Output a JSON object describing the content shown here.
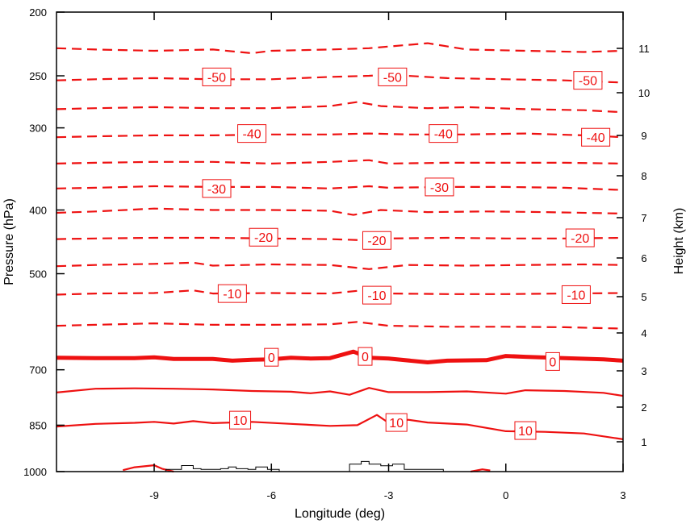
{
  "chart_data": {
    "type": "contour",
    "xlabel": "Longitude (deg)",
    "ylabel_left": "Pressure (hPa)",
    "ylabel_right": "Height (km)",
    "x_range": [
      -11.5,
      3.0
    ],
    "x_ticks": [
      {
        "value": -9,
        "label": "-9"
      },
      {
        "value": -6,
        "label": "-6"
      },
      {
        "value": -3,
        "label": "-3"
      },
      {
        "value": 0,
        "label": "0"
      },
      {
        "value": 3,
        "label": "3"
      }
    ],
    "pressure_range": [
      1000,
      200
    ],
    "pressure_scale": "log",
    "pressure_ticks": [
      {
        "value": 200,
        "label": "200"
      },
      {
        "value": 250,
        "label": "250"
      },
      {
        "value": 300,
        "label": "300"
      },
      {
        "value": 400,
        "label": "400"
      },
      {
        "value": 500,
        "label": "500"
      },
      {
        "value": 700,
        "label": "700"
      },
      {
        "value": 850,
        "label": "850"
      },
      {
        "value": 1000,
        "label": "1000"
      }
    ],
    "height_ticks": [
      {
        "value": 1,
        "label": "1"
      },
      {
        "value": 2,
        "label": "2"
      },
      {
        "value": 3,
        "label": "3"
      },
      {
        "value": 4,
        "label": "4"
      },
      {
        "value": 5,
        "label": "5"
      },
      {
        "value": 6,
        "label": "6"
      },
      {
        "value": 7,
        "label": "7"
      },
      {
        "value": 8,
        "label": "8"
      },
      {
        "value": 9,
        "label": "9"
      },
      {
        "value": 10,
        "label": "10"
      },
      {
        "value": 11,
        "label": "11"
      }
    ],
    "contour_color": "#ee1111",
    "terrain_color": "#000000",
    "contours": [
      {
        "value": -55,
        "style": "dashed",
        "labeled": false,
        "points": [
          [
            -11.5,
            227
          ],
          [
            -10.5,
            228
          ],
          [
            -9.0,
            229
          ],
          [
            -7.5,
            228
          ],
          [
            -6.5,
            231
          ],
          [
            -6.0,
            229
          ],
          [
            -4.5,
            228
          ],
          [
            -3.5,
            227
          ],
          [
            -2.0,
            223
          ],
          [
            -1.0,
            228
          ],
          [
            0.5,
            229
          ],
          [
            2.0,
            230
          ],
          [
            3.0,
            229
          ]
        ]
      },
      {
        "value": -50,
        "style": "dashed",
        "labeled": true,
        "label": "-50",
        "points": [
          [
            -11.5,
            254
          ],
          [
            -10.5,
            253
          ],
          [
            -9.0,
            252
          ],
          [
            -7.5,
            253
          ],
          [
            -6.0,
            253
          ],
          [
            -4.5,
            251
          ],
          [
            -3.5,
            250
          ],
          [
            -3.0,
            249
          ],
          [
            -1.5,
            252
          ],
          [
            0.0,
            253
          ],
          [
            1.5,
            254
          ],
          [
            3.0,
            256
          ]
        ],
        "label_positions": [
          [
            -7.4,
            251
          ],
          [
            -2.9,
            251
          ],
          [
            2.1,
            254
          ]
        ]
      },
      {
        "value": -45,
        "style": "dashed",
        "labeled": false,
        "points": [
          [
            -11.5,
            281
          ],
          [
            -10.5,
            280
          ],
          [
            -9.0,
            279
          ],
          [
            -7.5,
            280
          ],
          [
            -6.0,
            280
          ],
          [
            -4.5,
            278
          ],
          [
            -3.8,
            274
          ],
          [
            -3.2,
            278
          ],
          [
            -2.0,
            280
          ],
          [
            -1.0,
            279
          ],
          [
            0.5,
            281
          ],
          [
            2.0,
            282
          ],
          [
            3.0,
            284
          ]
        ]
      },
      {
        "value": -40,
        "style": "dashed",
        "labeled": true,
        "label": "-40",
        "points": [
          [
            -11.5,
            310
          ],
          [
            -10.5,
            309
          ],
          [
            -9.0,
            308
          ],
          [
            -7.5,
            308
          ],
          [
            -6.0,
            307
          ],
          [
            -4.5,
            307
          ],
          [
            -3.5,
            306
          ],
          [
            -2.5,
            307
          ],
          [
            -1.0,
            307
          ],
          [
            0.5,
            306
          ],
          [
            2.0,
            308
          ],
          [
            3.0,
            310
          ]
        ],
        "label_positions": [
          [
            -6.5,
            306
          ],
          [
            -1.6,
            306
          ],
          [
            2.3,
            310
          ]
        ]
      },
      {
        "value": -35,
        "style": "dashed",
        "labeled": false,
        "points": [
          [
            -11.5,
            340
          ],
          [
            -10.5,
            339
          ],
          [
            -9.0,
            338
          ],
          [
            -7.5,
            338
          ],
          [
            -6.0,
            340
          ],
          [
            -4.5,
            338
          ],
          [
            -3.5,
            336
          ],
          [
            -3.0,
            340
          ],
          [
            -1.5,
            339
          ],
          [
            0.0,
            339
          ],
          [
            1.5,
            339
          ],
          [
            3.0,
            340
          ]
        ]
      },
      {
        "value": -30,
        "style": "dashed",
        "labeled": true,
        "label": "-30",
        "points": [
          [
            -11.5,
            371
          ],
          [
            -10.5,
            370
          ],
          [
            -9.0,
            368
          ],
          [
            -7.5,
            369
          ],
          [
            -6.0,
            369
          ],
          [
            -4.5,
            371
          ],
          [
            -3.5,
            368
          ],
          [
            -3.0,
            370
          ],
          [
            -1.5,
            369
          ],
          [
            0.0,
            369
          ],
          [
            1.5,
            370
          ],
          [
            3.0,
            373
          ]
        ],
        "label_positions": [
          [
            -7.4,
            371
          ],
          [
            -1.7,
            369
          ]
        ]
      },
      {
        "value": -25,
        "style": "dashed",
        "labeled": false,
        "points": [
          [
            -11.5,
            404
          ],
          [
            -10.5,
            402
          ],
          [
            -9.0,
            398
          ],
          [
            -7.5,
            400
          ],
          [
            -6.0,
            400
          ],
          [
            -4.5,
            401
          ],
          [
            -3.9,
            407
          ],
          [
            -3.2,
            400
          ],
          [
            -2.0,
            403
          ],
          [
            -0.5,
            402
          ],
          [
            1.0,
            403
          ],
          [
            3.0,
            405
          ]
        ]
      },
      {
        "value": -20,
        "style": "dashed",
        "labeled": true,
        "label": "-20",
        "points": [
          [
            -11.5,
            443
          ],
          [
            -10.5,
            442
          ],
          [
            -9.0,
            441
          ],
          [
            -7.5,
            441
          ],
          [
            -6.0,
            442
          ],
          [
            -4.5,
            443
          ],
          [
            -3.5,
            445
          ],
          [
            -3.0,
            442
          ],
          [
            -1.5,
            441
          ],
          [
            0.0,
            442
          ],
          [
            1.5,
            442
          ],
          [
            3.0,
            441
          ]
        ],
        "label_positions": [
          [
            -6.2,
            440
          ],
          [
            -3.3,
            445
          ],
          [
            1.9,
            441
          ]
        ]
      },
      {
        "value": -15,
        "style": "dashed",
        "labeled": false,
        "points": [
          [
            -11.5,
            487
          ],
          [
            -10.5,
            485
          ],
          [
            -9.0,
            483
          ],
          [
            -8.0,
            481
          ],
          [
            -7.5,
            486
          ],
          [
            -6.0,
            484
          ],
          [
            -4.5,
            485
          ],
          [
            -3.5,
            492
          ],
          [
            -2.5,
            485
          ],
          [
            -1.0,
            486
          ],
          [
            0.5,
            485
          ],
          [
            2.0,
            484
          ],
          [
            3.0,
            485
          ]
        ]
      },
      {
        "value": -10,
        "style": "dashed",
        "labeled": true,
        "label": "-10",
        "points": [
          [
            -11.5,
            538
          ],
          [
            -10.5,
            536
          ],
          [
            -9.0,
            535
          ],
          [
            -8.0,
            530
          ],
          [
            -7.5,
            536
          ],
          [
            -6.0,
            535
          ],
          [
            -4.5,
            536
          ],
          [
            -3.8,
            531
          ],
          [
            -3.0,
            536
          ],
          [
            -1.5,
            537
          ],
          [
            0.0,
            537
          ],
          [
            1.5,
            536
          ],
          [
            3.0,
            535
          ]
        ],
        "label_positions": [
          [
            -7.0,
            536
          ],
          [
            -3.3,
            539
          ],
          [
            1.8,
            538
          ]
        ]
      },
      {
        "value": -5,
        "style": "dashed",
        "labeled": false,
        "points": [
          [
            -11.5,
            600
          ],
          [
            -10.5,
            598
          ],
          [
            -9.0,
            595
          ],
          [
            -7.5,
            598
          ],
          [
            -6.0,
            598
          ],
          [
            -4.5,
            597
          ],
          [
            -3.8,
            592
          ],
          [
            -3.0,
            600
          ],
          [
            -1.5,
            602
          ],
          [
            0.0,
            602
          ],
          [
            1.5,
            603
          ],
          [
            3.0,
            606
          ]
        ]
      },
      {
        "value": 0,
        "style": "thick",
        "labeled": true,
        "label": "0",
        "points": [
          [
            -11.5,
            671
          ],
          [
            -10.5,
            672
          ],
          [
            -9.5,
            672
          ],
          [
            -9.0,
            670
          ],
          [
            -8.5,
            674
          ],
          [
            -7.5,
            674
          ],
          [
            -7.0,
            678
          ],
          [
            -6.5,
            676
          ],
          [
            -6.0,
            675
          ],
          [
            -5.5,
            671
          ],
          [
            -5.0,
            673
          ],
          [
            -4.5,
            672
          ],
          [
            -3.9,
            657
          ],
          [
            -3.5,
            671
          ],
          [
            -3.0,
            673
          ],
          [
            -2.0,
            682
          ],
          [
            -1.5,
            678
          ],
          [
            -0.5,
            677
          ],
          [
            0.0,
            667
          ],
          [
            0.5,
            669
          ],
          [
            1.5,
            672
          ],
          [
            2.5,
            675
          ],
          [
            3.0,
            678
          ]
        ],
        "label_positions": [
          [
            -6.0,
            670
          ],
          [
            -3.6,
            668
          ],
          [
            1.2,
            680
          ]
        ]
      },
      {
        "value": 5,
        "style": "solid",
        "labeled": false,
        "points": [
          [
            -11.5,
            758
          ],
          [
            -10.5,
            748
          ],
          [
            -9.5,
            747
          ],
          [
            -8.5,
            748
          ],
          [
            -7.5,
            750
          ],
          [
            -6.5,
            754
          ],
          [
            -5.5,
            756
          ],
          [
            -5.0,
            760
          ],
          [
            -4.5,
            755
          ],
          [
            -4.0,
            764
          ],
          [
            -3.5,
            746
          ],
          [
            -3.0,
            757
          ],
          [
            -2.0,
            757
          ],
          [
            -1.0,
            755
          ],
          [
            0.0,
            761
          ],
          [
            0.5,
            752
          ],
          [
            1.5,
            754
          ],
          [
            2.5,
            759
          ],
          [
            3.0,
            767
          ]
        ]
      },
      {
        "value": 10,
        "style": "solid",
        "labeled": true,
        "label": "10",
        "points": [
          [
            -11.5,
            854
          ],
          [
            -10.5,
            846
          ],
          [
            -9.5,
            843
          ],
          [
            -9.0,
            840
          ],
          [
            -8.5,
            845
          ],
          [
            -8.0,
            838
          ],
          [
            -7.5,
            844
          ],
          [
            -6.5,
            840
          ],
          [
            -5.5,
            846
          ],
          [
            -4.5,
            852
          ],
          [
            -3.8,
            850
          ],
          [
            -3.3,
            820
          ],
          [
            -3.0,
            843
          ],
          [
            -2.5,
            834
          ],
          [
            -2.0,
            842
          ],
          [
            -1.0,
            848
          ],
          [
            0.0,
            868
          ],
          [
            1.0,
            870
          ],
          [
            2.0,
            875
          ],
          [
            3.0,
            893
          ]
        ],
        "label_positions": [
          [
            -6.8,
            835
          ],
          [
            -2.8,
            842
          ],
          [
            0.5,
            866
          ]
        ]
      },
      {
        "value": 15,
        "style": "solid",
        "labeled": false,
        "points": [
          [
            -9.8,
            995
          ],
          [
            -9.5,
            985
          ],
          [
            -9.0,
            978
          ],
          [
            -8.8,
            990
          ],
          [
            -8.5,
            1000
          ]
        ],
        "extra_segments": [
          [
            [
              -0.9,
              1000
            ],
            [
              -0.6,
              992
            ],
            [
              -0.4,
              996
            ]
          ]
        ]
      }
    ],
    "terrain": [
      [
        -8.7,
        1000
      ],
      [
        -8.7,
        992
      ],
      [
        -8.3,
        992
      ],
      [
        -8.3,
        979
      ],
      [
        -8.0,
        979
      ],
      [
        -8.0,
        990
      ],
      [
        -7.8,
        990
      ],
      [
        -7.8,
        992
      ],
      [
        -7.3,
        992
      ],
      [
        -7.3,
        990
      ],
      [
        -7.1,
        990
      ],
      [
        -7.1,
        984
      ],
      [
        -6.9,
        984
      ],
      [
        -6.9,
        990
      ],
      [
        -6.6,
        990
      ],
      [
        -6.6,
        992
      ],
      [
        -6.4,
        992
      ],
      [
        -6.4,
        984
      ],
      [
        -6.1,
        984
      ],
      [
        -6.1,
        992
      ],
      [
        -5.8,
        992
      ],
      [
        -5.8,
        1000
      ],
      [
        -4.0,
        1000
      ],
      [
        -4.0,
        974
      ],
      [
        -3.7,
        974
      ],
      [
        -3.7,
        965
      ],
      [
        -3.5,
        965
      ],
      [
        -3.5,
        974
      ],
      [
        -3.2,
        974
      ],
      [
        -3.2,
        980
      ],
      [
        -2.9,
        980
      ],
      [
        -2.9,
        974
      ],
      [
        -2.6,
        974
      ],
      [
        -2.6,
        992
      ],
      [
        -1.6,
        992
      ],
      [
        -1.6,
        1000
      ]
    ]
  }
}
